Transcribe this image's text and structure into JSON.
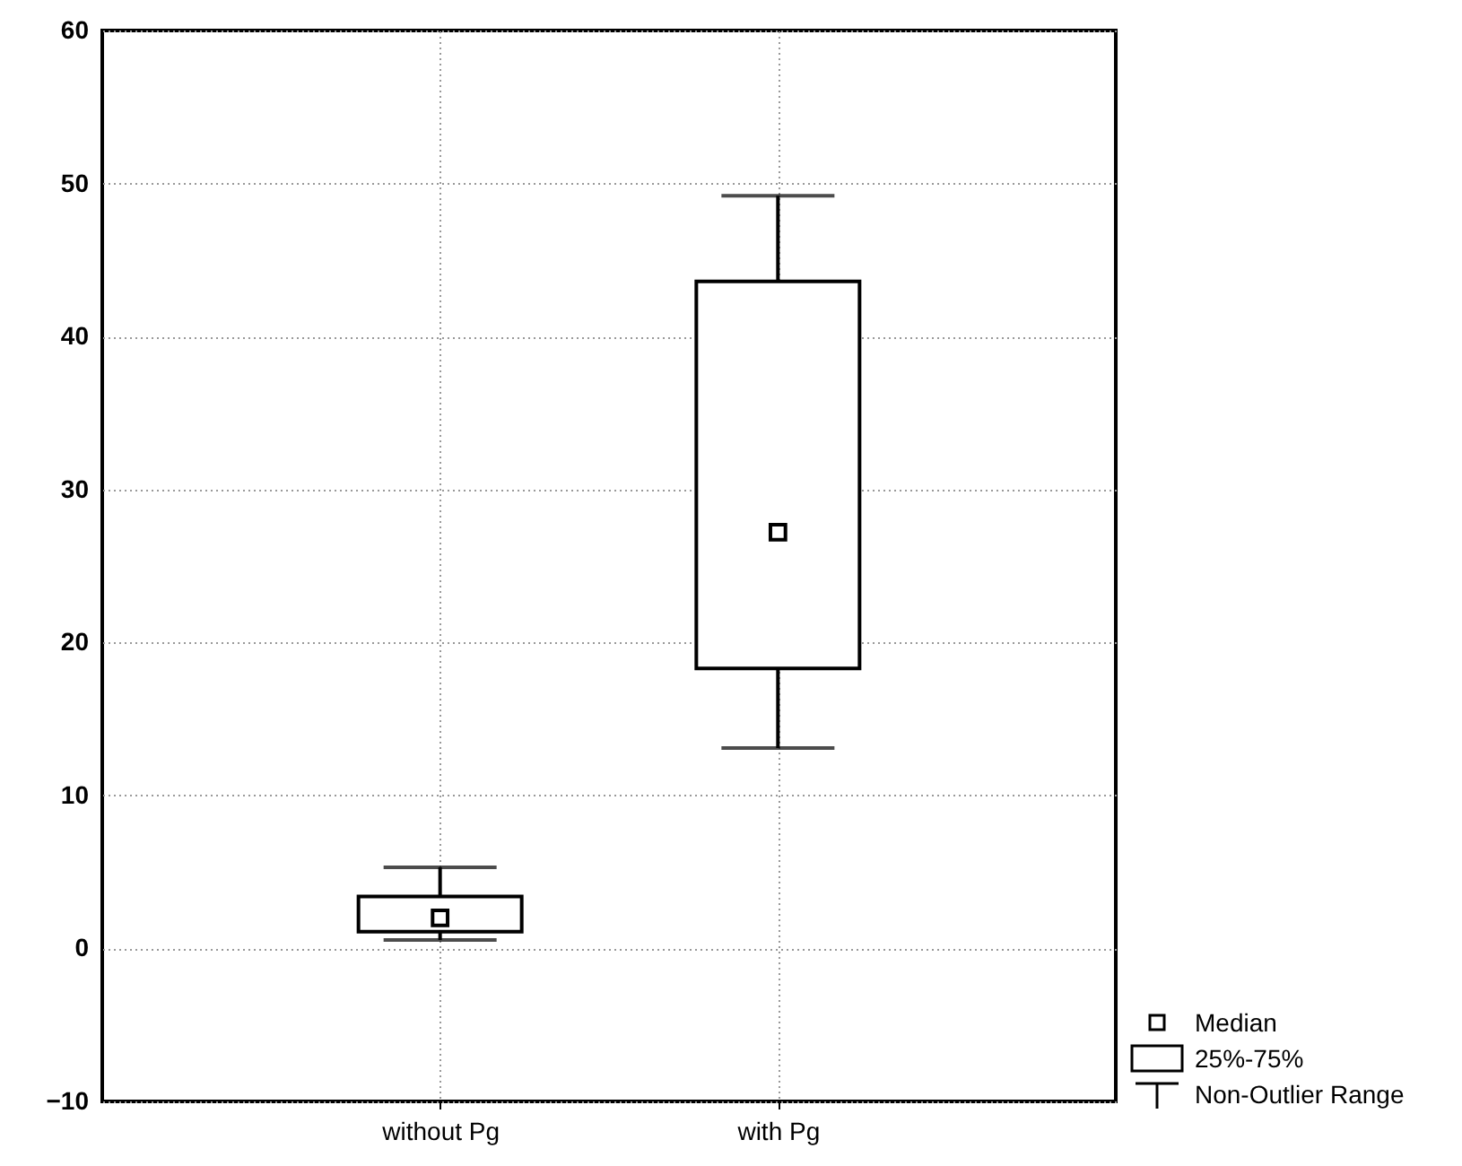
{
  "chart_data": {
    "type": "box",
    "categories": [
      "without Pg",
      "with Pg"
    ],
    "boxes": [
      {
        "low": 0.55,
        "q1": 1.1,
        "median": 2.0,
        "q3": 3.4,
        "high": 5.3
      },
      {
        "low": 13.1,
        "q1": 18.3,
        "median": 27.2,
        "q3": 43.6,
        "high": 49.2
      }
    ],
    "ylim": [
      -10,
      60
    ],
    "yticks": [
      -10,
      0,
      10,
      20,
      30,
      40,
      50,
      60
    ],
    "grid": true,
    "annotations": [
      "Median",
      "25%-75%",
      "Non-Outlier Range"
    ]
  }
}
